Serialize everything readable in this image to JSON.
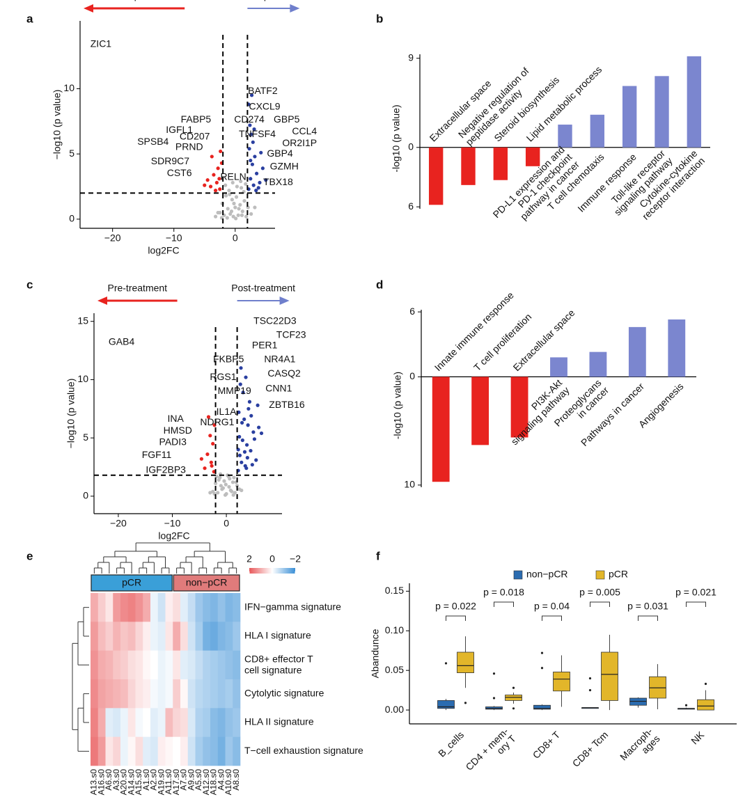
{
  "chart_data": [
    {
      "type": "volcano",
      "panel": "a",
      "xlabel": "log2FC",
      "ylabel": "−log10 (p value)",
      "xlim": [
        -25.3,
        6.5
      ],
      "ylim": [
        -0.7,
        15.2
      ],
      "xticks": [
        {
          "value": -20,
          "label": "−20"
        },
        {
          "value": -10,
          "label": "−10"
        },
        0
      ],
      "yticks": [
        0,
        5,
        10
      ],
      "vlines": [
        -2,
        2
      ],
      "hline": 2,
      "arrows": [
        {
          "label": "non-pCR",
          "color": "#e8231f",
          "direction": "left"
        },
        {
          "label": "pCR",
          "color": "#6f7fcc",
          "direction": "right"
        }
      ],
      "series": [
        {
          "color": "#bdbdbd",
          "x": [
            -2.5,
            -2.1,
            -1.8,
            -1.5,
            -1.2,
            -1,
            -0.8,
            -0.5,
            -0.3,
            0,
            0.2,
            0.5,
            0.8,
            1,
            1.2,
            1.5,
            1.8,
            2.1,
            -1.6,
            -0.9,
            -0.4,
            0.3,
            0.9,
            1.4,
            -2.2,
            -1.3,
            -0.6,
            0.6,
            1.1,
            1.7,
            -2.8,
            2.6,
            3.2,
            -3.2,
            0.1,
            -0.2
          ],
          "y": [
            0.5,
            1.2,
            0.3,
            1.8,
            0.8,
            2.2,
            0.4,
            1.5,
            0.2,
            0.9,
            1.7,
            0.3,
            1.1,
            2.4,
            0.6,
            1.4,
            0.2,
            0.9,
            2.6,
            1.9,
            2.8,
            2.5,
            2.9,
            2.1,
            0.1,
            0.1,
            0.6,
            0.8,
            0.3,
            2.7,
            0.5,
            0.4,
            0.9,
            0.2,
            0.05,
            1.2
          ]
        },
        {
          "color": "#e8231f",
          "x": [
            -2.5,
            -3,
            -3.5,
            -2.8,
            -4,
            -2.2,
            -3.2,
            -2.6,
            -4.5,
            -3.8,
            -2.4,
            -5
          ],
          "y": [
            2.3,
            2.8,
            3.4,
            3.9,
            2.5,
            4.3,
            2.2,
            3.1,
            3.0,
            4.8,
            5.2,
            2.6
          ]
        },
        {
          "color": "#2a3fa0",
          "x": [
            2.2,
            2.5,
            3,
            2.8,
            3.5,
            2.3,
            4,
            2.6,
            3.2,
            5,
            2.4,
            2.9,
            3.8,
            2.2,
            4.5,
            2.7,
            3.1,
            3.4,
            2.5,
            4.2
          ],
          "y": [
            2.3,
            3.1,
            2.6,
            4.2,
            3.5,
            5.4,
            2.8,
            6.5,
            4.8,
            3.0,
            7.2,
            5.9,
            2.4,
            8.8,
            3.9,
            9.5,
            6.9,
            2.2,
            4.5,
            5.1
          ]
        }
      ],
      "annotations": [
        {
          "label": "ZIC1",
          "x": -21.9,
          "y": 13.4,
          "color": "#e8231f"
        },
        {
          "label": "BATF2",
          "x": 4.5,
          "y": 9.8,
          "color": "#3a4fb0"
        },
        {
          "label": "CXCL9",
          "x": 4.8,
          "y": 8.6,
          "color": "#3a4fb0"
        },
        {
          "label": "CD274",
          "x": 2.3,
          "y": 7.6,
          "color": "#3a4fb0"
        },
        {
          "label": "GBP5",
          "x": 8.4,
          "y": 7.6,
          "color": "#3a4fb0"
        },
        {
          "label": "TNFSF4",
          "x": 3.6,
          "y": 6.5,
          "color": "#3a4fb0"
        },
        {
          "label": "CCL4",
          "x": 11.3,
          "y": 6.7,
          "color": "#3a4fb0"
        },
        {
          "label": "OR2I1P",
          "x": 10.5,
          "y": 5.8,
          "color": "#3a4fb0"
        },
        {
          "label": "GBP4",
          "x": 7.3,
          "y": 5.0,
          "color": "#3a4fb0"
        },
        {
          "label": "GZMH",
          "x": 8.0,
          "y": 4.0,
          "color": "#3a4fb0"
        },
        {
          "label": "TBX18",
          "x": 7.0,
          "y": 2.8,
          "color": "#3a4fb0"
        },
        {
          "label": "RELN",
          "x": -0.3,
          "y": 3.2,
          "color": "#e8231f"
        },
        {
          "label": "FABP5",
          "x": -6.4,
          "y": 7.6,
          "color": "#e8231f"
        },
        {
          "label": "IGFL1",
          "x": -9.1,
          "y": 6.8,
          "color": "#e8231f"
        },
        {
          "label": "CD207",
          "x": -6.6,
          "y": 6.3,
          "color": "#e8231f"
        },
        {
          "label": "SPSB4",
          "x": -13.4,
          "y": 5.9,
          "color": "#e8231f"
        },
        {
          "label": "PRND",
          "x": -7.5,
          "y": 5.5,
          "color": "#e8231f"
        },
        {
          "label": "SDR9C7",
          "x": -10.6,
          "y": 4.4,
          "color": "#e8231f"
        },
        {
          "label": "CST6",
          "x": -9.1,
          "y": 3.5,
          "color": "#e8231f"
        }
      ]
    },
    {
      "type": "bar",
      "panel": "b",
      "ylabel": "-log10 (p value)",
      "categories": [
        "Extracellular space",
        "Negative regulation of\npeptidase activity",
        "Steroid biosynthesis",
        "Lipid metabolic process",
        "PD-L1 expression and\nPD-1 checkpoint\npathway in cancer",
        "T cell chemotaxis",
        "Immune response",
        "Toll-like receptor\nsignaling pathway",
        "Cytokine-cytokine\nreceptor interaction"
      ],
      "values": [
        -5.8,
        -3.8,
        -3.3,
        -1.9,
        2.3,
        3.3,
        6.2,
        7.2,
        9.2
      ],
      "negative_color": "#e8231f",
      "positive_color": "#7b86cf",
      "ylim": [
        -6.2,
        9.4
      ],
      "yticks": [
        {
          "value": -6,
          "label": "6"
        },
        0,
        9
      ]
    },
    {
      "type": "volcano",
      "panel": "c",
      "xlabel": "log2FC",
      "ylabel": "−log10 (p value)",
      "xlim": [
        -24.5,
        10.3
      ],
      "ylim": [
        -1.5,
        15.7
      ],
      "xticks": [
        {
          "value": -20,
          "label": "−20"
        },
        {
          "value": -10,
          "label": "−10"
        },
        0
      ],
      "yticks": [
        0,
        5,
        10,
        15
      ],
      "vlines": [
        -2,
        2
      ],
      "hline": 1.8,
      "arrows": [
        {
          "label": "Pre-treatment",
          "color": "#e8231f",
          "direction": "left"
        },
        {
          "label": "Post-treatment",
          "color": "#6f7fcc",
          "direction": "right"
        }
      ],
      "series": [
        {
          "color": "#bdbdbd",
          "x": [
            -2.5,
            -2,
            -1.6,
            -1.2,
            -0.8,
            -0.4,
            0,
            0.4,
            0.8,
            1.2,
            1.6,
            2,
            -1.8,
            -1,
            -0.2,
            0.6,
            1.4,
            -2.2,
            -1.4,
            -0.6,
            0.2,
            1,
            1.8,
            2.4,
            -3,
            2.8,
            -0.1,
            0.5,
            -1.1,
            1.3
          ],
          "y": [
            0.4,
            1.1,
            0.3,
            1.6,
            0.6,
            1.3,
            0.2,
            1.7,
            0.5,
            1.2,
            0.3,
            0.9,
            1.7,
            0.9,
            0.1,
            1.5,
            1.6,
            0.2,
            1.4,
            0.7,
            1.8,
            0.4,
            1.2,
            0.6,
            0.3,
            0.5,
            1.0,
            0.8,
            1.9,
            0.1
          ]
        },
        {
          "color": "#e8231f",
          "x": [
            -2.3,
            -2.8,
            -3.5,
            -2.5,
            -4,
            -3,
            -2.2,
            -4.6,
            -2.7,
            -3.3
          ],
          "y": [
            2.1,
            2.9,
            3.6,
            4.5,
            2.4,
            5.2,
            6.1,
            3.2,
            2.6,
            6.8
          ]
        },
        {
          "color": "#2a3fa0",
          "x": [
            2.2,
            2.5,
            3,
            3.5,
            4,
            4.5,
            5,
            2.3,
            2.8,
            3.3,
            3.8,
            4.3,
            5.5,
            6,
            2.4,
            3.1,
            3.7,
            4.6,
            2.6,
            3.4,
            4.1,
            5.2,
            2.9,
            3.6,
            4.8,
            6.5,
            2.2,
            3.9,
            5.8,
            2.7
          ],
          "y": [
            2.2,
            3.5,
            4.8,
            2.6,
            6.1,
            3.9,
            5.5,
            7.2,
            2.9,
            6.6,
            4.4,
            8.1,
            3.1,
            5.9,
            5.1,
            8.9,
            2.4,
            6.9,
            9.6,
            3.8,
            7.5,
            4.9,
            6.3,
            10.2,
            2.7,
            5.4,
            4.0,
            3.3,
            7.8,
            11
          ]
        }
      ],
      "annotations": [
        {
          "label": "GAB4",
          "x": -19.4,
          "y": 13.2,
          "color": "#e8231f"
        },
        {
          "label": "TSC22D3",
          "x": 9.0,
          "y": 15.0,
          "color": "#3a4fb0"
        },
        {
          "label": "TCF23",
          "x": 12.0,
          "y": 13.8,
          "color": "#3a4fb0"
        },
        {
          "label": "PER1",
          "x": 7.1,
          "y": 12.9,
          "color": "#3a4fb0"
        },
        {
          "label": "FKBP5",
          "x": 0.4,
          "y": 11.7,
          "color": "#3a4fb0"
        },
        {
          "label": "NR4A1",
          "x": 9.9,
          "y": 11.7,
          "color": "#3a4fb0"
        },
        {
          "label": "CASQ2",
          "x": 10.7,
          "y": 10.5,
          "color": "#3a4fb0"
        },
        {
          "label": "RGS1",
          "x": -0.6,
          "y": 10.2,
          "color": "#3a4fb0"
        },
        {
          "label": "MMP19",
          "x": 1.5,
          "y": 9.0,
          "color": "#3a4fb0"
        },
        {
          "label": "CNN1",
          "x": 9.7,
          "y": 9.2,
          "color": "#3a4fb0"
        },
        {
          "label": "ZBTB16",
          "x": 11.2,
          "y": 7.8,
          "color": "#3a4fb0"
        },
        {
          "label": "IL1A",
          "x": 0,
          "y": 7.2,
          "color": "#e8231f"
        },
        {
          "label": "NDRG1",
          "x": -1.7,
          "y": 6.3,
          "color": "#e8231f"
        },
        {
          "label": "INA",
          "x": -9.4,
          "y": 6.6,
          "color": "#e8231f"
        },
        {
          "label": "HMSD",
          "x": -9.0,
          "y": 5.6,
          "color": "#e8231f"
        },
        {
          "label": "PADI3",
          "x": -9.9,
          "y": 4.6,
          "color": "#e8231f"
        },
        {
          "label": "FGF11",
          "x": -12.9,
          "y": 3.5,
          "color": "#e8231f"
        },
        {
          "label": "IGF2BP3",
          "x": -11.2,
          "y": 2.2,
          "color": "#e8231f"
        }
      ]
    },
    {
      "type": "bar",
      "panel": "d",
      "ylabel": "-log10 (p value)",
      "categories": [
        "Innate immune response",
        "T cell proliferation",
        "Extracellular space",
        "PI3K-Akt\nsignaling pathway",
        "Proteoglycans\nin cancer",
        "Pathways in cancer",
        "Angiogenesis"
      ],
      "values": [
        -9.7,
        -6.3,
        -5.6,
        1.8,
        2.3,
        4.6,
        5.3
      ],
      "negative_color": "#e8231f",
      "positive_color": "#7b86cf",
      "ylim": [
        -10.2,
        6.2
      ],
      "yticks": [
        {
          "value": -10,
          "label": "10"
        },
        0,
        6
      ]
    },
    {
      "type": "heatmap",
      "panel": "e",
      "columns": [
        "A13.s0",
        "A16.s0",
        "A6.s0",
        "A3.s0",
        "A20.s0",
        "A14.s0",
        "A15.s0",
        "A1.s0",
        "A2.s0",
        "A19.s0",
        "A11.s0",
        "A17.s0",
        "A7.s0",
        "A9.s0",
        "A5.s0",
        "A12.s0",
        "A18.s0",
        "A4.s0",
        "A10.s0",
        "A8.s0"
      ],
      "rows": [
        "IFN−gamma signature",
        "HLA I signature",
        "CD8+ effector T\ncell signature",
        "Cytolytic signature",
        "HLA II signature",
        "T−cell exhaustion signature"
      ],
      "values": [
        [
          1.0,
          0.6,
          0.3,
          1.2,
          1.4,
          1.5,
          1.3,
          1.0,
          -0.2,
          -0.5,
          0.2,
          0.4,
          -0.3,
          -0.6,
          -1.0,
          -1.2,
          -1.3,
          -1.1,
          -1.3,
          -1.2
        ],
        [
          1.2,
          0.8,
          0.6,
          0.9,
          0.7,
          0.8,
          0.5,
          0.2,
          -0.2,
          -0.3,
          0.3,
          1.0,
          0.4,
          -0.5,
          -0.9,
          -1.4,
          -1.5,
          -1.3,
          -1.2,
          -1.0
        ],
        [
          1.3,
          1.0,
          0.9,
          0.7,
          0.6,
          0.4,
          0.3,
          0.1,
          0.0,
          -0.2,
          -0.1,
          0.3,
          -0.3,
          -0.4,
          -0.6,
          -0.8,
          -0.9,
          -1.0,
          -1.1,
          -1.2
        ],
        [
          1.4,
          1.1,
          1.0,
          0.9,
          0.8,
          0.5,
          0.3,
          0.2,
          -0.1,
          -0.2,
          -0.1,
          0.6,
          0.1,
          -0.5,
          -0.7,
          -0.8,
          -0.9,
          -1.0,
          -0.9,
          -1.1
        ],
        [
          1.5,
          1.0,
          -0.3,
          -0.4,
          -0.2,
          0.3,
          -0.1,
          0.0,
          -0.3,
          -0.2,
          0.8,
          0.5,
          0.4,
          -0.4,
          -0.8,
          -0.9,
          -1.2,
          -1.3,
          -1.1,
          -1.0
        ],
        [
          1.6,
          1.2,
          0.3,
          0.5,
          -0.2,
          0.1,
          0.4,
          -0.3,
          -0.4,
          0.2,
          0.1,
          0.0,
          0.2,
          -0.5,
          -0.9,
          -1.1,
          -1.2,
          -1.4,
          -1.0,
          -1.2
        ]
      ],
      "zlim": [
        -2,
        2
      ],
      "colorscale": [
        "#3a8fd6",
        "#ffffff",
        "#e8585a"
      ],
      "colorbar_ticks": [
        2,
        0,
        {
          "value": -2,
          "label": "−2"
        }
      ],
      "groups": [
        {
          "name": "pCR",
          "color": "#3a9fd8",
          "start": 0,
          "end": 10
        },
        {
          "name": "non−pCR",
          "color": "#e07b7b",
          "start": 11,
          "end": 19
        }
      ]
    },
    {
      "type": "box",
      "panel": "f",
      "ylabel": "Abandunce",
      "legend": "top",
      "categories": [
        "B_cells",
        "CD4 + mem-\nory T",
        "CD8+ T",
        "CD8+ Tcm",
        "Macroph-\nages",
        "NK"
      ],
      "pvalues": [
        "p = 0.022",
        "p = 0.018",
        "p = 0.04",
        "p = 0.005",
        "p = 0.031",
        "p = 0.021"
      ],
      "ylim": [
        -0.0175,
        0.16
      ],
      "yticks": [
        {
          "value": 0,
          "label": "0.00"
        },
        0.05,
        {
          "value": 0.1,
          "label": "0.10"
        },
        0.15
      ],
      "series": [
        {
          "name": "non−pCR",
          "color": "#2b6cb0",
          "boxes": [
            {
              "q1": 0.002,
              "median": 0.004,
              "q3": 0.012,
              "low": 0,
              "high": 0.014,
              "outliers": [
                0.059
              ]
            },
            {
              "q1": 0.001,
              "median": 0.002,
              "q3": 0.004,
              "low": 0,
              "high": 0.005,
              "outliers": [
                0.046,
                0.015
              ]
            },
            {
              "q1": 0.001,
              "median": 0.002,
              "q3": 0.006,
              "low": 0,
              "high": 0.007,
              "outliers": [
                0.072,
                0.053
              ]
            },
            {
              "q1": 0.002,
              "median": 0.003,
              "q3": 0.003,
              "low": 0.002,
              "high": 0.003,
              "outliers": [
                0.04,
                0.025
              ]
            },
            {
              "q1": 0.006,
              "median": 0.011,
              "q3": 0.015,
              "low": 0.003,
              "high": 0.016,
              "outliers": []
            },
            {
              "q1": 0.001,
              "median": 0.002,
              "q3": 0.002,
              "low": 0.001,
              "high": 0.003,
              "outliers": [
                0.006
              ]
            }
          ]
        },
        {
          "name": "pCR",
          "color": "#e2b62a",
          "boxes": [
            {
              "q1": 0.047,
              "median": 0.056,
              "q3": 0.073,
              "low": 0.028,
              "high": 0.093,
              "outliers": [
                0.009
              ]
            },
            {
              "q1": 0.012,
              "median": 0.016,
              "q3": 0.019,
              "low": 0.008,
              "high": 0.022,
              "outliers": [
                0.028,
                0.002
              ]
            },
            {
              "q1": 0.024,
              "median": 0.039,
              "q3": 0.048,
              "low": 0.004,
              "high": 0.069,
              "outliers": []
            },
            {
              "q1": 0.012,
              "median": 0.045,
              "q3": 0.073,
              "low": 0,
              "high": 0.095,
              "outliers": []
            },
            {
              "q1": 0.015,
              "median": 0.028,
              "q3": 0.042,
              "low": 0.001,
              "high": 0.058,
              "outliers": []
            },
            {
              "q1": 0,
              "median": 0.005,
              "q3": 0.013,
              "low": 0,
              "high": 0.025,
              "outliers": [
                0.033
              ]
            }
          ]
        }
      ]
    }
  ]
}
